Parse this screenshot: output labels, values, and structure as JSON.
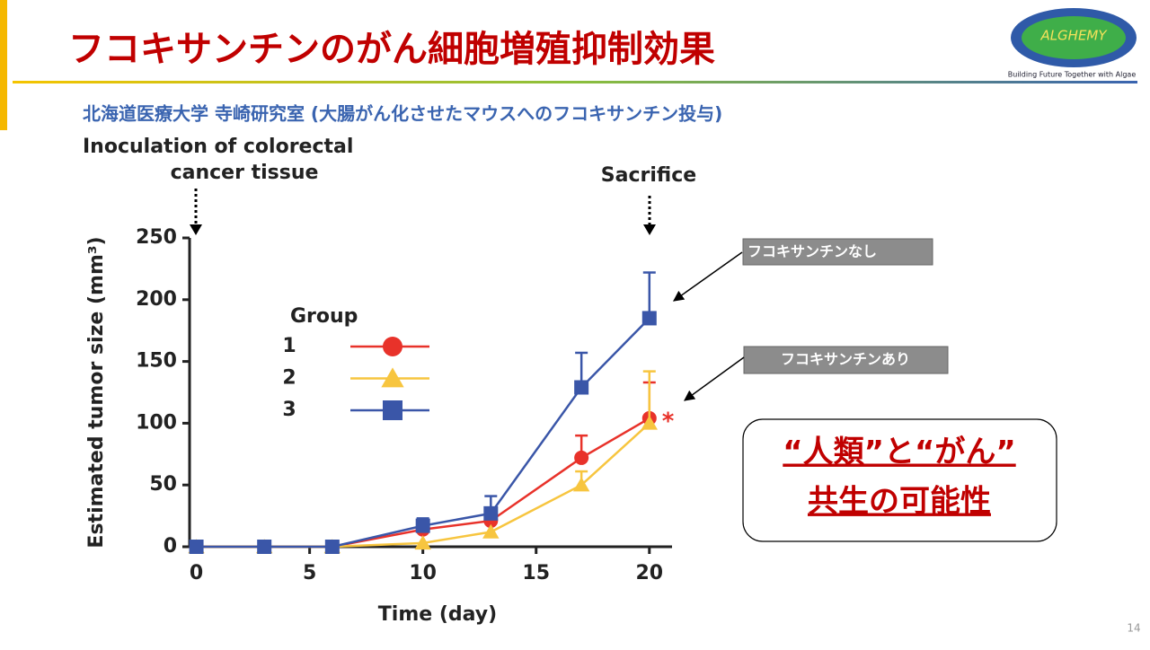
{
  "slide": {
    "title": "フコキサンチンのがん細胞増殖抑制効果",
    "subtitle": "北海道医療大学 寺崎研究室 (大腸がん化させたマウスへのフコキサンチン投与)",
    "logo": "ALGHEMY",
    "tagline": "Building Future Together with Algae",
    "page_number": "14",
    "callouts": [
      "フコキサンチンなし",
      "フコキサンチンあり"
    ],
    "message": [
      "“人類”と“がん”",
      "共生の可能性"
    ]
  },
  "chart_data": {
    "type": "line",
    "x": [
      0,
      3,
      6,
      10,
      13,
      17,
      20
    ],
    "series": [
      {
        "name": "1",
        "color": "#e8322a",
        "marker": "circle",
        "values": [
          0,
          0,
          0,
          14,
          21,
          72,
          104
        ],
        "errors": [
          null,
          null,
          null,
          6,
          5,
          18,
          29
        ]
      },
      {
        "name": "2",
        "color": "#f7c53f",
        "marker": "triangle",
        "values": [
          0,
          0,
          0,
          3,
          12,
          50,
          100
        ],
        "errors": [
          null,
          null,
          null,
          null,
          null,
          11,
          42
        ]
      },
      {
        "name": "3",
        "color": "#3a56a8",
        "marker": "square",
        "values": [
          0,
          0,
          0,
          17,
          27,
          129,
          185
        ],
        "errors": [
          null,
          null,
          null,
          6,
          14,
          28,
          37
        ]
      }
    ],
    "xlim": [
      -0.3,
      21
    ],
    "ylim": [
      0,
      250
    ],
    "xticks": [
      0,
      5,
      10,
      15,
      20
    ],
    "yticks": [
      0,
      50,
      100,
      150,
      200,
      250
    ],
    "xlabel": "Time (day)",
    "ylabel": "Estimated tumor size (mm³)",
    "legend_title": "Group",
    "annotations": {
      "inoculation": [
        "Inoculation of colorectal",
        "cancer tissue"
      ],
      "sacrifice": "Sacrifice",
      "significance": "*"
    }
  }
}
